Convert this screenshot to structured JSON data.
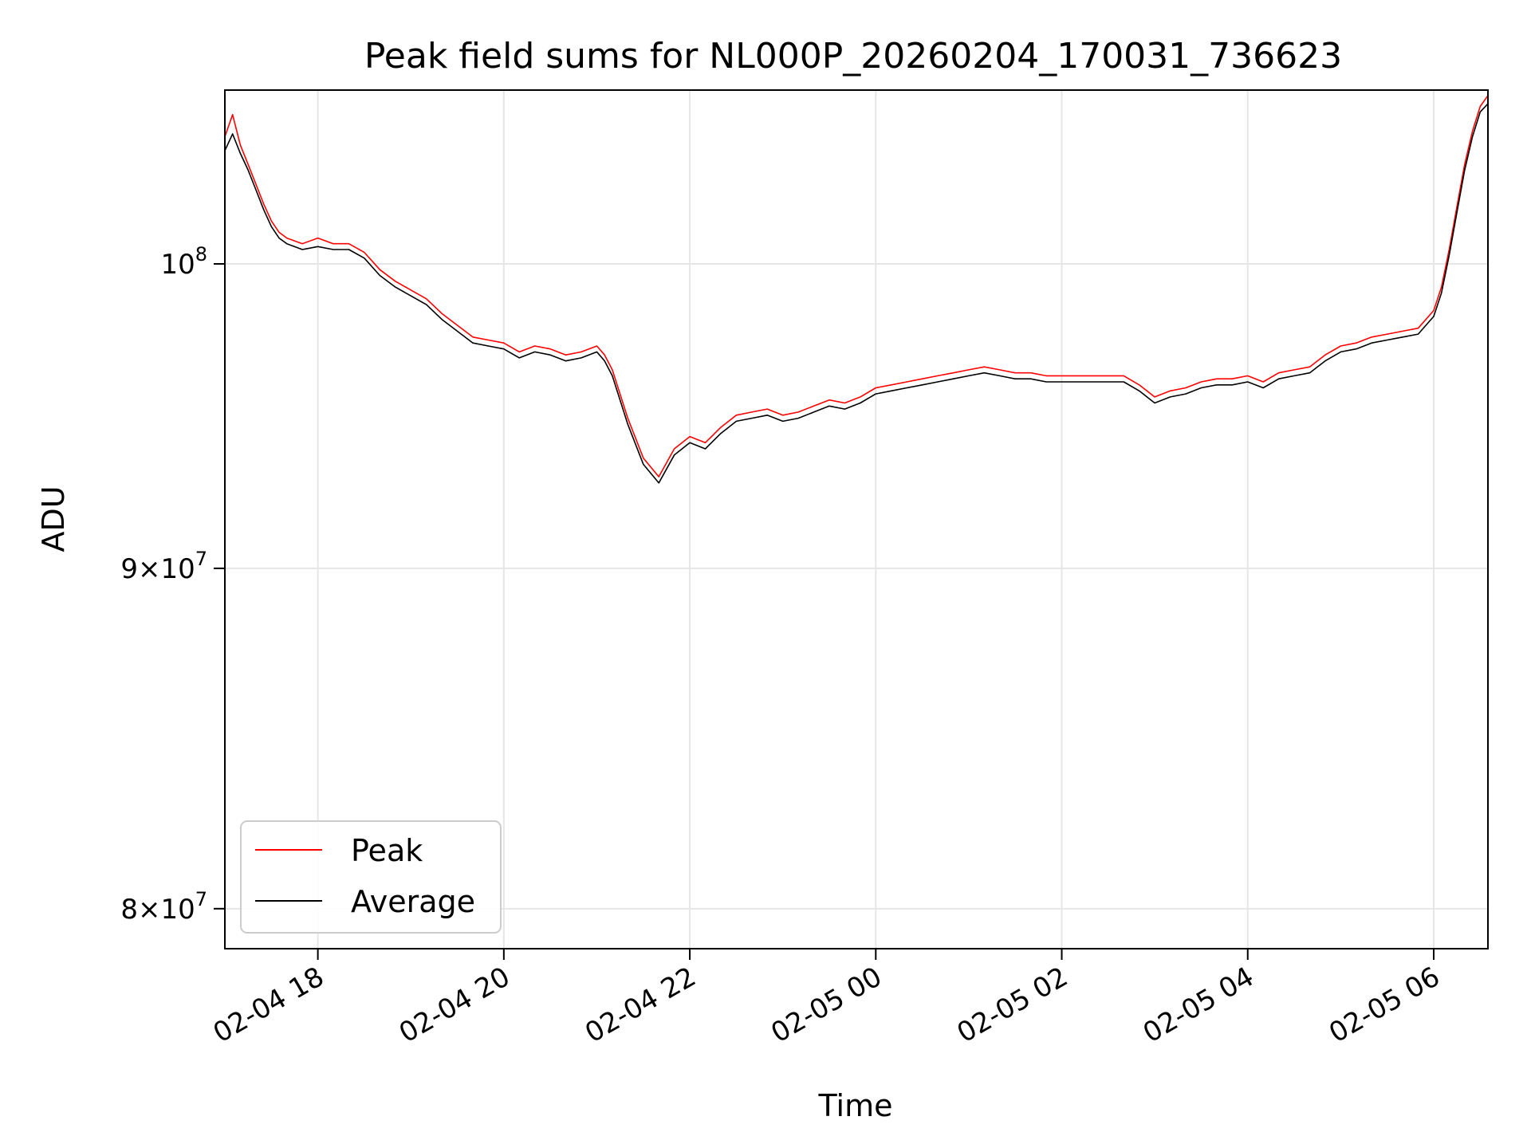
{
  "chart_data": {
    "type": "line",
    "title": "Peak field sums for NL000P_20260204_170031_736623",
    "xlabel": "Time",
    "ylabel": "ADU",
    "y_scale": "log",
    "xlim": [
      "2026-02-04 17:00",
      "2026-02-05 06:35"
    ],
    "ylim": [
      78900000,
      106200000
    ],
    "grid": true,
    "legend_position": "lower-left",
    "x_ticks": [
      {
        "value": "2026-02-04 18:00",
        "label": "02-04 18"
      },
      {
        "value": "2026-02-04 20:00",
        "label": "02-04 20"
      },
      {
        "value": "2026-02-04 22:00",
        "label": "02-04 22"
      },
      {
        "value": "2026-02-05 00:00",
        "label": "02-05 00"
      },
      {
        "value": "2026-02-05 02:00",
        "label": "02-05 02"
      },
      {
        "value": "2026-02-05 04:00",
        "label": "02-05 04"
      },
      {
        "value": "2026-02-05 06:00",
        "label": "02-05 06"
      }
    ],
    "y_ticks": [
      {
        "value": 80000000,
        "mantissa": "8",
        "label_suffix": "×10",
        "exponent": "7"
      },
      {
        "value": 90000000,
        "mantissa": "9",
        "label_suffix": "×10",
        "exponent": "7"
      },
      {
        "value": 100000000,
        "mantissa": "",
        "label_suffix": "10",
        "exponent": "8"
      }
    ],
    "series": [
      {
        "name": "Peak",
        "color": "#ff0000",
        "points": [
          [
            "2026-02-04 17:00",
            104500000
          ],
          [
            "2026-02-04 17:05",
            105300000
          ],
          [
            "2026-02-04 17:10",
            104200000
          ],
          [
            "2026-02-04 17:15",
            103500000
          ],
          [
            "2026-02-04 17:20",
            102800000
          ],
          [
            "2026-02-04 17:25",
            102100000
          ],
          [
            "2026-02-04 17:30",
            101500000
          ],
          [
            "2026-02-04 17:35",
            101100000
          ],
          [
            "2026-02-04 17:40",
            100900000
          ],
          [
            "2026-02-04 17:50",
            100700000
          ],
          [
            "2026-02-04 18:00",
            100900000
          ],
          [
            "2026-02-04 18:10",
            100700000
          ],
          [
            "2026-02-04 18:20",
            100700000
          ],
          [
            "2026-02-04 18:30",
            100400000
          ],
          [
            "2026-02-04 18:40",
            99800000
          ],
          [
            "2026-02-04 18:50",
            99400000
          ],
          [
            "2026-02-04 19:00",
            99100000
          ],
          [
            "2026-02-04 19:10",
            98800000
          ],
          [
            "2026-02-04 19:20",
            98300000
          ],
          [
            "2026-02-04 19:30",
            97900000
          ],
          [
            "2026-02-04 19:40",
            97500000
          ],
          [
            "2026-02-04 19:50",
            97400000
          ],
          [
            "2026-02-04 20:00",
            97300000
          ],
          [
            "2026-02-04 20:10",
            97000000
          ],
          [
            "2026-02-04 20:20",
            97200000
          ],
          [
            "2026-02-04 20:30",
            97100000
          ],
          [
            "2026-02-04 20:40",
            96900000
          ],
          [
            "2026-02-04 20:50",
            97000000
          ],
          [
            "2026-02-04 21:00",
            97200000
          ],
          [
            "2026-02-04 21:05",
            96900000
          ],
          [
            "2026-02-04 21:10",
            96400000
          ],
          [
            "2026-02-04 21:20",
            94800000
          ],
          [
            "2026-02-04 21:30",
            93500000
          ],
          [
            "2026-02-04 21:40",
            92900000
          ],
          [
            "2026-02-04 21:50",
            93800000
          ],
          [
            "2026-02-04 22:00",
            94200000
          ],
          [
            "2026-02-04 22:10",
            94000000
          ],
          [
            "2026-02-04 22:20",
            94500000
          ],
          [
            "2026-02-04 22:30",
            94900000
          ],
          [
            "2026-02-04 22:40",
            95000000
          ],
          [
            "2026-02-04 22:50",
            95100000
          ],
          [
            "2026-02-04 23:00",
            94900000
          ],
          [
            "2026-02-04 23:10",
            95000000
          ],
          [
            "2026-02-04 23:20",
            95200000
          ],
          [
            "2026-02-04 23:30",
            95400000
          ],
          [
            "2026-02-04 23:40",
            95300000
          ],
          [
            "2026-02-04 23:50",
            95500000
          ],
          [
            "2026-02-05 00:00",
            95800000
          ],
          [
            "2026-02-05 00:10",
            95900000
          ],
          [
            "2026-02-05 00:20",
            96000000
          ],
          [
            "2026-02-05 00:30",
            96100000
          ],
          [
            "2026-02-05 00:40",
            96200000
          ],
          [
            "2026-02-05 00:50",
            96300000
          ],
          [
            "2026-02-05 01:00",
            96400000
          ],
          [
            "2026-02-05 01:10",
            96500000
          ],
          [
            "2026-02-05 01:20",
            96400000
          ],
          [
            "2026-02-05 01:30",
            96300000
          ],
          [
            "2026-02-05 01:40",
            96300000
          ],
          [
            "2026-02-05 01:50",
            96200000
          ],
          [
            "2026-02-05 02:00",
            96200000
          ],
          [
            "2026-02-05 02:10",
            96200000
          ],
          [
            "2026-02-05 02:20",
            96200000
          ],
          [
            "2026-02-05 02:30",
            96200000
          ],
          [
            "2026-02-05 02:40",
            96200000
          ],
          [
            "2026-02-05 02:50",
            95900000
          ],
          [
            "2026-02-05 03:00",
            95500000
          ],
          [
            "2026-02-05 03:10",
            95700000
          ],
          [
            "2026-02-05 03:20",
            95800000
          ],
          [
            "2026-02-05 03:30",
            96000000
          ],
          [
            "2026-02-05 03:40",
            96100000
          ],
          [
            "2026-02-05 03:50",
            96100000
          ],
          [
            "2026-02-05 04:00",
            96200000
          ],
          [
            "2026-02-05 04:10",
            96000000
          ],
          [
            "2026-02-05 04:20",
            96300000
          ],
          [
            "2026-02-05 04:30",
            96400000
          ],
          [
            "2026-02-05 04:40",
            96500000
          ],
          [
            "2026-02-05 04:50",
            96900000
          ],
          [
            "2026-02-05 05:00",
            97200000
          ],
          [
            "2026-02-05 05:10",
            97300000
          ],
          [
            "2026-02-05 05:20",
            97500000
          ],
          [
            "2026-02-05 05:30",
            97600000
          ],
          [
            "2026-02-05 05:40",
            97700000
          ],
          [
            "2026-02-05 05:50",
            97800000
          ],
          [
            "2026-02-05 06:00",
            98400000
          ],
          [
            "2026-02-05 06:05",
            99200000
          ],
          [
            "2026-02-05 06:10",
            100500000
          ],
          [
            "2026-02-05 06:15",
            102000000
          ],
          [
            "2026-02-05 06:20",
            103500000
          ],
          [
            "2026-02-05 06:25",
            104700000
          ],
          [
            "2026-02-05 06:30",
            105600000
          ],
          [
            "2026-02-05 06:35",
            106000000
          ]
        ]
      },
      {
        "name": "Average",
        "color": "#000000",
        "points": [
          [
            "2026-02-04 17:00",
            104000000
          ],
          [
            "2026-02-04 17:05",
            104600000
          ],
          [
            "2026-02-04 17:10",
            103900000
          ],
          [
            "2026-02-04 17:15",
            103300000
          ],
          [
            "2026-02-04 17:20",
            102600000
          ],
          [
            "2026-02-04 17:25",
            101900000
          ],
          [
            "2026-02-04 17:30",
            101300000
          ],
          [
            "2026-02-04 17:35",
            100900000
          ],
          [
            "2026-02-04 17:40",
            100700000
          ],
          [
            "2026-02-04 17:50",
            100500000
          ],
          [
            "2026-02-04 18:00",
            100600000
          ],
          [
            "2026-02-04 18:10",
            100500000
          ],
          [
            "2026-02-04 18:20",
            100500000
          ],
          [
            "2026-02-04 18:30",
            100200000
          ],
          [
            "2026-02-04 18:40",
            99600000
          ],
          [
            "2026-02-04 18:50",
            99200000
          ],
          [
            "2026-02-04 19:00",
            98900000
          ],
          [
            "2026-02-04 19:10",
            98600000
          ],
          [
            "2026-02-04 19:20",
            98100000
          ],
          [
            "2026-02-04 19:30",
            97700000
          ],
          [
            "2026-02-04 19:40",
            97300000
          ],
          [
            "2026-02-04 19:50",
            97200000
          ],
          [
            "2026-02-04 20:00",
            97100000
          ],
          [
            "2026-02-04 20:10",
            96800000
          ],
          [
            "2026-02-04 20:20",
            97000000
          ],
          [
            "2026-02-04 20:30",
            96900000
          ],
          [
            "2026-02-04 20:40",
            96700000
          ],
          [
            "2026-02-04 20:50",
            96800000
          ],
          [
            "2026-02-04 21:00",
            97000000
          ],
          [
            "2026-02-04 21:05",
            96700000
          ],
          [
            "2026-02-04 21:10",
            96200000
          ],
          [
            "2026-02-04 21:20",
            94600000
          ],
          [
            "2026-02-04 21:30",
            93300000
          ],
          [
            "2026-02-04 21:40",
            92700000
          ],
          [
            "2026-02-04 21:50",
            93600000
          ],
          [
            "2026-02-04 22:00",
            94000000
          ],
          [
            "2026-02-04 22:10",
            93800000
          ],
          [
            "2026-02-04 22:20",
            94300000
          ],
          [
            "2026-02-04 22:30",
            94700000
          ],
          [
            "2026-02-04 22:40",
            94800000
          ],
          [
            "2026-02-04 22:50",
            94900000
          ],
          [
            "2026-02-04 23:00",
            94700000
          ],
          [
            "2026-02-04 23:10",
            94800000
          ],
          [
            "2026-02-04 23:20",
            95000000
          ],
          [
            "2026-02-04 23:30",
            95200000
          ],
          [
            "2026-02-04 23:40",
            95100000
          ],
          [
            "2026-02-04 23:50",
            95300000
          ],
          [
            "2026-02-05 00:00",
            95600000
          ],
          [
            "2026-02-05 00:10",
            95700000
          ],
          [
            "2026-02-05 00:20",
            95800000
          ],
          [
            "2026-02-05 00:30",
            95900000
          ],
          [
            "2026-02-05 00:40",
            96000000
          ],
          [
            "2026-02-05 00:50",
            96100000
          ],
          [
            "2026-02-05 01:00",
            96200000
          ],
          [
            "2026-02-05 01:10",
            96300000
          ],
          [
            "2026-02-05 01:20",
            96200000
          ],
          [
            "2026-02-05 01:30",
            96100000
          ],
          [
            "2026-02-05 01:40",
            96100000
          ],
          [
            "2026-02-05 01:50",
            96000000
          ],
          [
            "2026-02-05 02:00",
            96000000
          ],
          [
            "2026-02-05 02:10",
            96000000
          ],
          [
            "2026-02-05 02:20",
            96000000
          ],
          [
            "2026-02-05 02:30",
            96000000
          ],
          [
            "2026-02-05 02:40",
            96000000
          ],
          [
            "2026-02-05 02:50",
            95700000
          ],
          [
            "2026-02-05 03:00",
            95300000
          ],
          [
            "2026-02-05 03:10",
            95500000
          ],
          [
            "2026-02-05 03:20",
            95600000
          ],
          [
            "2026-02-05 03:30",
            95800000
          ],
          [
            "2026-02-05 03:40",
            95900000
          ],
          [
            "2026-02-05 03:50",
            95900000
          ],
          [
            "2026-02-05 04:00",
            96000000
          ],
          [
            "2026-02-05 04:10",
            95800000
          ],
          [
            "2026-02-05 04:20",
            96100000
          ],
          [
            "2026-02-05 04:30",
            96200000
          ],
          [
            "2026-02-05 04:40",
            96300000
          ],
          [
            "2026-02-05 04:50",
            96700000
          ],
          [
            "2026-02-05 05:00",
            97000000
          ],
          [
            "2026-02-05 05:10",
            97100000
          ],
          [
            "2026-02-05 05:20",
            97300000
          ],
          [
            "2026-02-05 05:30",
            97400000
          ],
          [
            "2026-02-05 05:40",
            97500000
          ],
          [
            "2026-02-05 05:50",
            97600000
          ],
          [
            "2026-02-05 06:00",
            98200000
          ],
          [
            "2026-02-05 06:05",
            99000000
          ],
          [
            "2026-02-05 06:10",
            100300000
          ],
          [
            "2026-02-05 06:15",
            101800000
          ],
          [
            "2026-02-05 06:20",
            103300000
          ],
          [
            "2026-02-05 06:25",
            104500000
          ],
          [
            "2026-02-05 06:30",
            105400000
          ],
          [
            "2026-02-05 06:35",
            105700000
          ]
        ]
      }
    ]
  }
}
